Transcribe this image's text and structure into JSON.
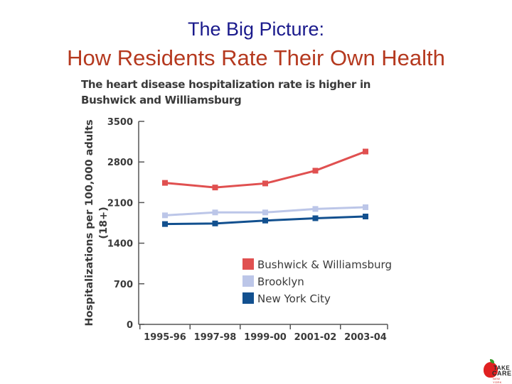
{
  "slide": {
    "title_line1": "The Big Picture:",
    "title_line2": "How Residents Rate Their Own Health"
  },
  "logo": {
    "line1": "TAKE",
    "line2": "CARE",
    "line3": "NEW YORK"
  },
  "colors": {
    "title_blue": "#1a1a8c",
    "title_red": "#b5391f",
    "bushwick": "#e05050",
    "brooklyn": "#bcc6e8",
    "nyc": "#12508f"
  },
  "chart_data": {
    "type": "line",
    "title": "The heart disease hospitalization rate is higher in Bushwick and Williamsburg",
    "xlabel": "",
    "ylabel": "Hospitalizations per 100,000 adults (18+)",
    "ylabel_line1": "Hospitalizations per 100,000 adults",
    "ylabel_line2": "(18+)",
    "categories": [
      "1995-96",
      "1997-98",
      "1999-00",
      "2001-02",
      "2003-04"
    ],
    "yticks": [
      0,
      700,
      1400,
      2100,
      2800,
      3500
    ],
    "ylim": [
      0,
      3500
    ],
    "grid": false,
    "legend_position": "lower-right",
    "series": [
      {
        "name": "Bushwick & Williamsburg",
        "color": "#e05050",
        "values": [
          2440,
          2360,
          2430,
          2650,
          2980
        ]
      },
      {
        "name": "Brooklyn",
        "color": "#bcc6e8",
        "values": [
          1880,
          1930,
          1930,
          1990,
          2020
        ]
      },
      {
        "name": "New York City",
        "color": "#12508f",
        "values": [
          1730,
          1740,
          1790,
          1830,
          1860
        ]
      }
    ]
  }
}
